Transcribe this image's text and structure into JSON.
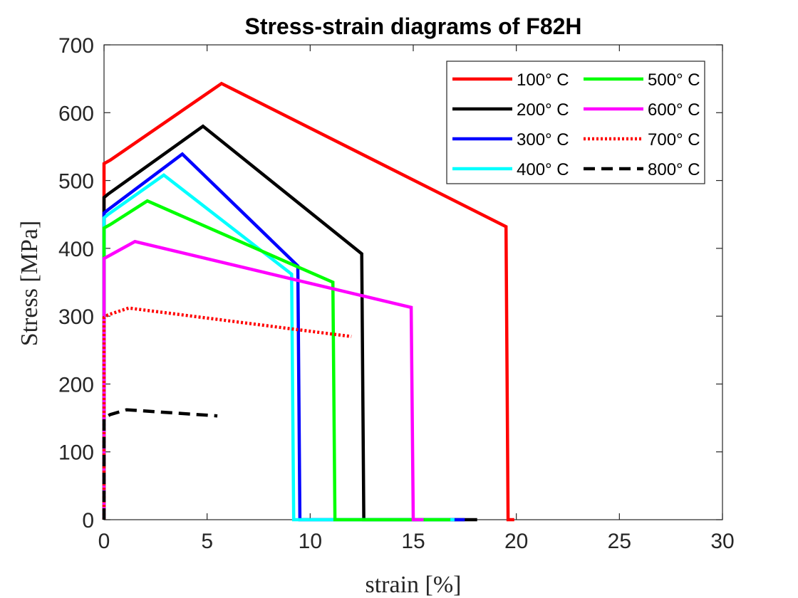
{
  "chart_data": {
    "type": "line",
    "title": "Stress-strain diagrams of F82H",
    "xlabel": "strain [%]",
    "ylabel": "Stress [MPa]",
    "xlim": [
      0,
      30
    ],
    "ylim": [
      0,
      700
    ],
    "xticks": [
      0,
      5,
      10,
      15,
      20,
      25,
      30
    ],
    "yticks": [
      0,
      100,
      200,
      300,
      400,
      500,
      600,
      700
    ],
    "grid": false,
    "legend_position": "top-right",
    "series": [
      {
        "name": "100° C",
        "color": "#ff0000",
        "style": "solid",
        "points": [
          [
            0,
            0
          ],
          [
            0,
            525
          ],
          [
            0.3,
            530
          ],
          [
            5.7,
            643
          ],
          [
            19.5,
            432
          ],
          [
            19.6,
            0
          ],
          [
            19.9,
            0
          ]
        ]
      },
      {
        "name": "200° C",
        "color": "#000000",
        "style": "solid",
        "points": [
          [
            0,
            0
          ],
          [
            0,
            475
          ],
          [
            0.2,
            480
          ],
          [
            4.8,
            580
          ],
          [
            12.5,
            392
          ],
          [
            12.6,
            0
          ],
          [
            18.1,
            0
          ]
        ]
      },
      {
        "name": "300° C",
        "color": "#0000ff",
        "style": "solid",
        "points": [
          [
            0,
            0
          ],
          [
            0,
            452
          ],
          [
            0.2,
            457
          ],
          [
            3.8,
            539
          ],
          [
            9.4,
            374
          ],
          [
            9.5,
            0
          ],
          [
            17.5,
            0
          ]
        ]
      },
      {
        "name": "400° C",
        "color": "#00ffff",
        "style": "solid",
        "points": [
          [
            0,
            0
          ],
          [
            0,
            445
          ],
          [
            0.2,
            450
          ],
          [
            2.9,
            508
          ],
          [
            9.1,
            362
          ],
          [
            9.2,
            0
          ],
          [
            17.0,
            0
          ]
        ]
      },
      {
        "name": "500° C",
        "color": "#00ff00",
        "style": "solid",
        "points": [
          [
            0,
            0
          ],
          [
            0,
            430
          ],
          [
            0.3,
            435
          ],
          [
            2.1,
            470
          ],
          [
            11.1,
            350
          ],
          [
            11.2,
            0
          ],
          [
            16.8,
            0
          ]
        ]
      },
      {
        "name": "600° C",
        "color": "#ff00ff",
        "style": "solid",
        "points": [
          [
            0,
            0
          ],
          [
            0,
            385
          ],
          [
            0.3,
            390
          ],
          [
            1.5,
            410
          ],
          [
            14.9,
            313
          ],
          [
            15.0,
            0
          ],
          [
            15.5,
            0
          ]
        ]
      },
      {
        "name": "700° C",
        "color": "#ff0000",
        "style": "dotted",
        "points": [
          [
            0,
            0
          ],
          [
            0,
            298
          ],
          [
            0.2,
            302
          ],
          [
            1.2,
            312
          ],
          [
            12.0,
            270
          ]
        ]
      },
      {
        "name": "800° C",
        "color": "#000000",
        "style": "dashed",
        "points": [
          [
            0,
            0
          ],
          [
            0,
            150
          ],
          [
            0.3,
            155
          ],
          [
            1.1,
            162
          ],
          [
            5.5,
            153
          ]
        ]
      }
    ]
  }
}
